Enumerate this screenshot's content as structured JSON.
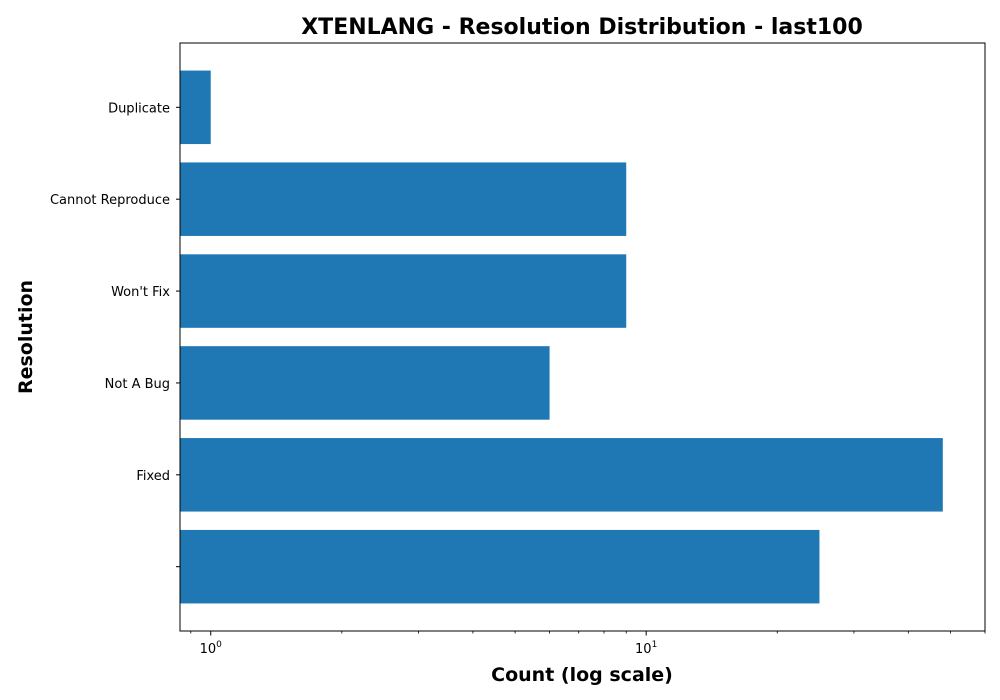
{
  "chart_data": {
    "type": "bar",
    "orientation": "horizontal",
    "title": "XTENLANG - Resolution Distribution - last100",
    "xlabel": "Count (log scale)",
    "ylabel": "Resolution",
    "xscale": "log",
    "xlim": [
      0.85,
      60
    ],
    "x_major_ticks": [
      {
        "value": 1,
        "base": "10",
        "exponent": "0"
      },
      {
        "value": 10,
        "base": "10",
        "exponent": "1"
      }
    ],
    "categories": [
      "",
      "Fixed",
      "Not A Bug",
      "Won't Fix",
      "Cannot Reproduce",
      "Duplicate"
    ],
    "values": [
      25,
      48,
      6,
      9,
      9,
      1
    ],
    "bar_color": "#1f77b4",
    "grid": false,
    "legend": "none"
  }
}
